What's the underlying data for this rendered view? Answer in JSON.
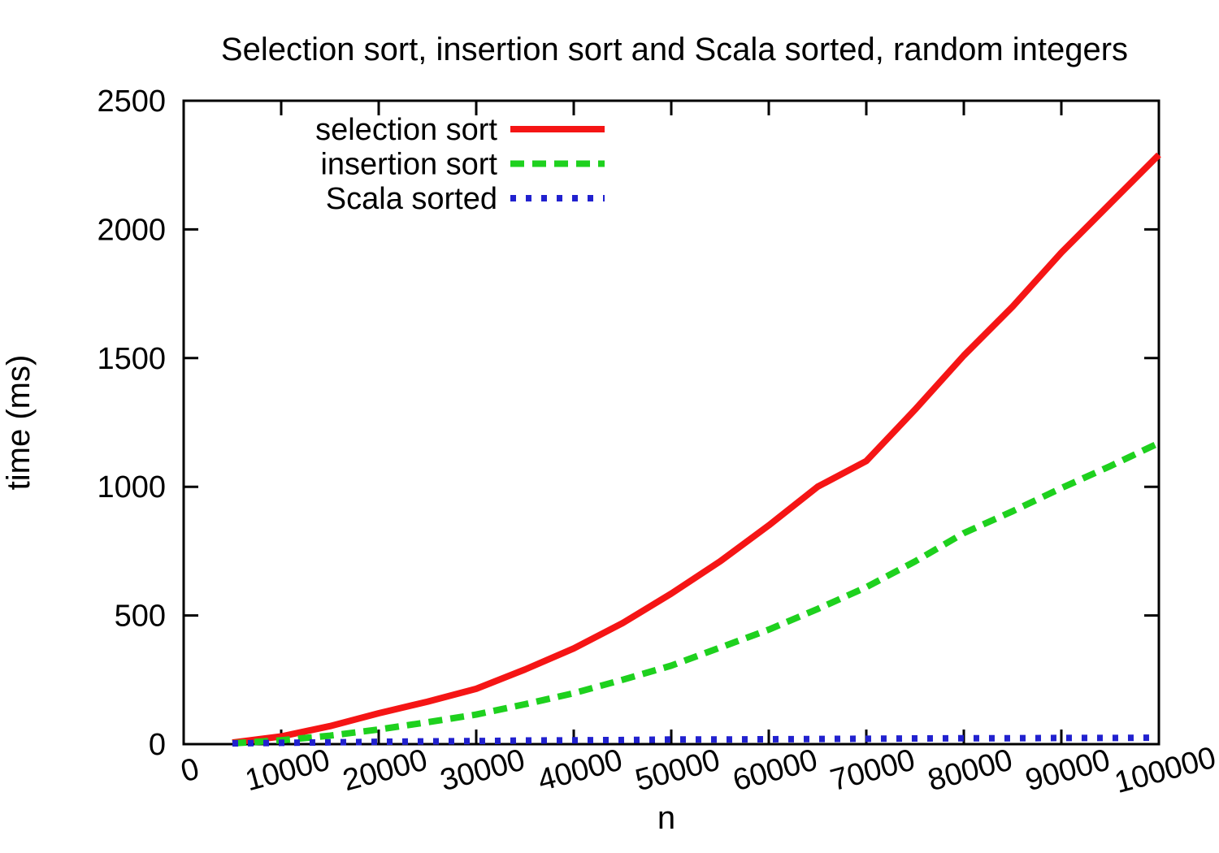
{
  "chart_data": {
    "type": "line",
    "title": "Selection sort, insertion sort and Scala sorted, random integers",
    "xlabel": "n",
    "ylabel": "time (ms)",
    "xlim": [
      0,
      100000
    ],
    "ylim": [
      0,
      2500
    ],
    "xticks": [
      0,
      10000,
      20000,
      30000,
      40000,
      50000,
      60000,
      70000,
      80000,
      90000,
      100000
    ],
    "yticks": [
      0,
      500,
      1000,
      1500,
      2000,
      2500
    ],
    "grid": false,
    "legend_position": "top-left-inside",
    "legend_entries": [
      "selection sort",
      "insertion sort",
      "Scala sorted"
    ],
    "x": [
      5000,
      10000,
      15000,
      20000,
      25000,
      30000,
      35000,
      40000,
      45000,
      50000,
      55000,
      60000,
      65000,
      70000,
      75000,
      80000,
      85000,
      90000,
      95000,
      100000
    ],
    "series": [
      {
        "name": "selection sort",
        "color": "#f51515",
        "style": "solid",
        "values": [
          6,
          30,
          70,
          120,
          165,
          215,
          290,
          372,
          470,
          585,
          710,
          850,
          1000,
          1100,
          1300,
          1510,
          1700,
          1910,
          2100,
          2290
        ]
      },
      {
        "name": "insertion sort",
        "color": "#1ed11e",
        "style": "dashed",
        "values": [
          3,
          15,
          33,
          57,
          85,
          115,
          155,
          198,
          250,
          305,
          375,
          445,
          525,
          610,
          710,
          820,
          905,
          995,
          1080,
          1170
        ]
      },
      {
        "name": "Scala sorted",
        "color": "#2121cf",
        "style": "dotted",
        "values": [
          3,
          5,
          7,
          9,
          11,
          12,
          14,
          15,
          16,
          18,
          18,
          19,
          20,
          21,
          22,
          23,
          23,
          24,
          24,
          25
        ]
      }
    ],
    "axis_color": "#000000",
    "background": "#ffffff"
  }
}
